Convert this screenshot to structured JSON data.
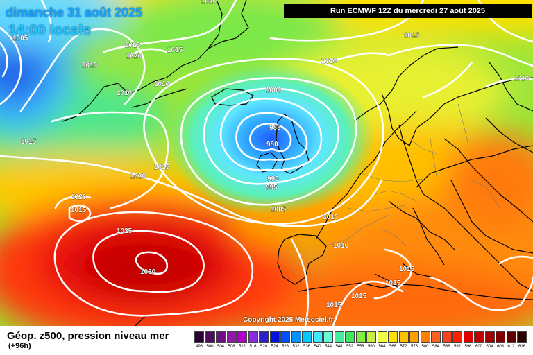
{
  "header": {
    "date_title": "dimanche 31 août 2025",
    "time_title": "14:00 locale",
    "run_info": "Run ECMWF 12Z du mercredi 27 août 2025"
  },
  "copyright": "Copyright 2025 Meteociel.fr",
  "legend": {
    "title": "Géop. z500, pression niveau mer",
    "subtitle": "(+96h)",
    "scale": [
      {
        "label": "496",
        "color": "#2a0033"
      },
      {
        "label": "500",
        "color": "#4b0d5c"
      },
      {
        "label": "504",
        "color": "#6a1080"
      },
      {
        "label": "508",
        "color": "#8e1aa8"
      },
      {
        "label": "512",
        "color": "#b000c8"
      },
      {
        "label": "516",
        "color": "#8a2be2"
      },
      {
        "label": "520",
        "color": "#3020c8"
      },
      {
        "label": "524",
        "color": "#0010e0"
      },
      {
        "label": "528",
        "color": "#0050ff"
      },
      {
        "label": "532",
        "color": "#0090ff"
      },
      {
        "label": "536",
        "color": "#00c8ff"
      },
      {
        "label": "540",
        "color": "#40e8ff"
      },
      {
        "label": "544",
        "color": "#60ffd8"
      },
      {
        "label": "548",
        "color": "#40f0a0"
      },
      {
        "label": "552",
        "color": "#40e860"
      },
      {
        "label": "556",
        "color": "#80f040"
      },
      {
        "label": "560",
        "color": "#c8f040"
      },
      {
        "label": "564",
        "color": "#f0ff40"
      },
      {
        "label": "568",
        "color": "#ffe000"
      },
      {
        "label": "572",
        "color": "#ffc000"
      },
      {
        "label": "576",
        "color": "#ffa000"
      },
      {
        "label": "580",
        "color": "#ff8000"
      },
      {
        "label": "584",
        "color": "#ff6020"
      },
      {
        "label": "588",
        "color": "#ff4020"
      },
      {
        "label": "592",
        "color": "#ff2000"
      },
      {
        "label": "596",
        "color": "#e00000"
      },
      {
        "label": "600",
        "color": "#c00000"
      },
      {
        "label": "604",
        "color": "#a00000"
      },
      {
        "label": "608",
        "color": "#800000"
      },
      {
        "label": "612",
        "color": "#600000"
      },
      {
        "label": "616",
        "color": "#2a0000"
      }
    ]
  },
  "pressure_labels": [
    "1005",
    "1015",
    "1020",
    "1010",
    "1015",
    "1010",
    "1010",
    "1015",
    "1010",
    "1000",
    "985",
    "980",
    "990",
    "995",
    "1005",
    "1020",
    "1015",
    "1020",
    "1015",
    "1025",
    "1030",
    "1010",
    "1010",
    "1015",
    "1015",
    "1015",
    "1015",
    "1010",
    "1015",
    "1010"
  ]
}
